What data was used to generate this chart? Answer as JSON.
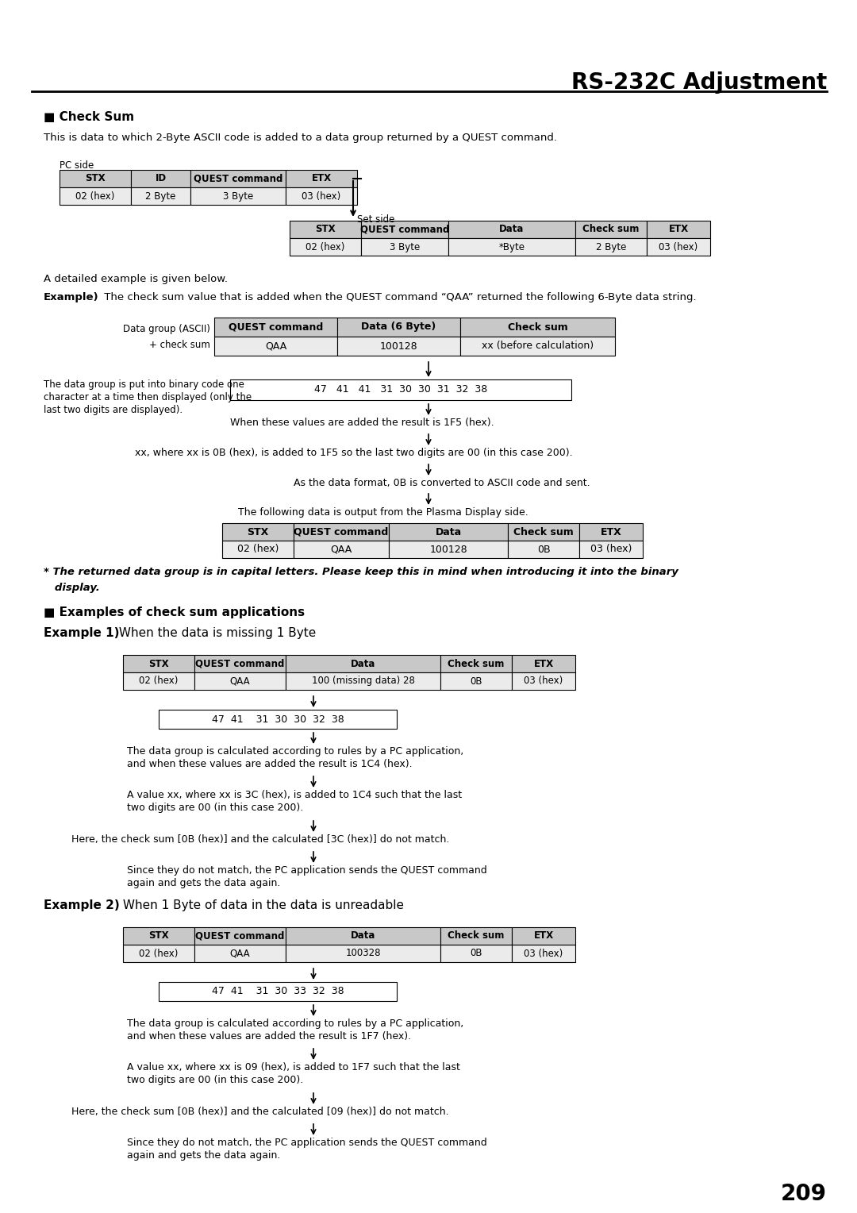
{
  "title": "RS-232C Adjustment",
  "page_number": "209",
  "bg_color": "#ffffff",
  "section1_heading": "■ Check Sum",
  "section1_text": "This is data to which 2-Byte ASCII code is added to a data group returned by a QUEST command.",
  "pc_side_label": "PC side",
  "set_side_label": "Set side",
  "pc_table_headers": [
    "STX",
    "ID",
    "QUEST command",
    "ETX"
  ],
  "pc_table_row": [
    "02 (hex)",
    "2 Byte",
    "3 Byte",
    "03 (hex)"
  ],
  "set_table_headers": [
    "STX",
    "QUEST command",
    "Data",
    "Check sum",
    "ETX"
  ],
  "set_table_row": [
    "02 (hex)",
    "3 Byte",
    "*Byte",
    "2 Byte",
    "03 (hex)"
  ],
  "detail_text": "A detailed example is given below.",
  "example_intro_bold": "Example)",
  "example_intro_rest": " The check sum value that is added when the QUEST command “QAA” returned the following 6-Byte data string.",
  "example_table_headers": [
    "QUEST command",
    "Data (6 Byte)",
    "Check sum"
  ],
  "example_table_row": [
    "QAA",
    "100128",
    "xx (before calculation)"
  ],
  "binary_values": "47   41   41   31  30  30  31  32  38",
  "binary_text1_line1": "The data group is put into binary code one",
  "binary_text1_line2": "character at a time then displayed (only the",
  "binary_text1_line3": "last two digits are displayed).",
  "binary_text2": "When these values are added the result is 1F5 (hex).",
  "step2_text": "xx, where xx is 0B (hex), is added to 1F5 so the last two digits are 00 (in this case 200).",
  "step3_text": "As the data format, 0B is converted to ASCII code and sent.",
  "step4_text": "The following data is output from the Plasma Display side.",
  "output_table_headers": [
    "STX",
    "QUEST command",
    "Data",
    "Check sum",
    "ETX"
  ],
  "output_table_row": [
    "02 (hex)",
    "QAA",
    "100128",
    "0B",
    "03 (hex)"
  ],
  "italic_note_line1": "* The returned data group is in capital letters. Please keep this in mind when introducing it into the binary",
  "italic_note_line2": "   display.",
  "section2_heading": "■ Examples of check sum applications",
  "ex1_label_bold": "Example 1)",
  "ex1_label_rest": " When the data is missing 1 Byte",
  "ex1_table_headers": [
    "STX",
    "QUEST command",
    "Data",
    "Check sum",
    "ETX"
  ],
  "ex1_table_row": [
    "02 (hex)",
    "QAA",
    "100 (missing data) 28",
    "0B",
    "03 (hex)"
  ],
  "ex1_binary": "47  41    31  30  30  32  38",
  "ex1_step1_line1": "The data group is calculated according to rules by a PC application,",
  "ex1_step1_line2": "and when these values are added the result is 1C4 (hex).",
  "ex1_step2_line1": "A value xx, where xx is 3C (hex), is added to 1C4 such that the last",
  "ex1_step2_line2": "two digits are 00 (in this case 200).",
  "ex1_step3": "Here, the check sum [0B (hex)] and the calculated [3C (hex)] do not match.",
  "ex1_step4_line1": "Since they do not match, the PC application sends the QUEST command",
  "ex1_step4_line2": "again and gets the data again.",
  "ex2_label_bold": "Example 2)",
  "ex2_label_rest": " When 1 Byte of data in the data is unreadable",
  "ex2_table_headers": [
    "STX",
    "QUEST command",
    "Data",
    "Check sum",
    "ETX"
  ],
  "ex2_table_row": [
    "02 (hex)",
    "QAA",
    "100328",
    "0B",
    "03 (hex)"
  ],
  "ex2_binary": "47  41    31  30  33  32  38",
  "ex2_step1_line1": "The data group is calculated according to rules by a PC application,",
  "ex2_step1_line2": "and when these values are added the result is 1F7 (hex).",
  "ex2_step2_line1": "A value xx, where xx is 09 (hex), is added to 1F7 such that the last",
  "ex2_step2_line2": "two digits are 00 (in this case 200).",
  "ex2_step3": "Here, the check sum [0B (hex)] and the calculated [09 (hex)] do not match.",
  "ex2_step4_line1": "Since they do not match, the PC application sends the QUEST command",
  "ex2_step4_line2": "again and gets the data again."
}
